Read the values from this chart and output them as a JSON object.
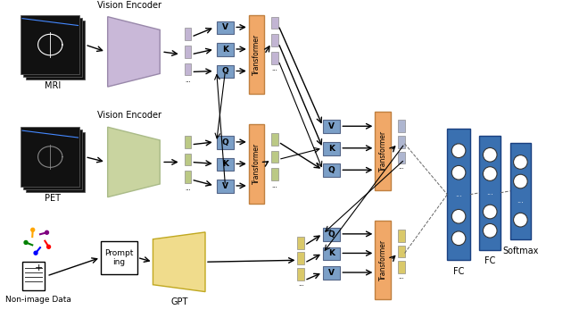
{
  "bg_color": "#ffffff",
  "mri_label": "MRI",
  "pet_label": "PET",
  "nonimage_label": "Non-image Data",
  "vision_encoder_label_1": "Vision Encoder",
  "vision_encoder_label_2": "Vision Encoder",
  "gpt_label": "GPT",
  "prompt_label": "Prompt\ning",
  "transformer_label": "Transformer",
  "fc_label_1": "FC",
  "fc_label_2": "FC",
  "softmax_label": "Softmax",
  "vkq_color": "#7b9fc7",
  "transformer_color": "#f0a868",
  "vision_enc1_color": "#c9b8d8",
  "vision_enc2_color": "#c9d4a0",
  "gpt_color": "#f0dc8c",
  "fc_color": "#3a70b0",
  "dot_purple": "#b8a8cc",
  "dot_green": "#b0c070",
  "dot_blue": "#a0aac8",
  "dot_yellow": "#d4c050"
}
